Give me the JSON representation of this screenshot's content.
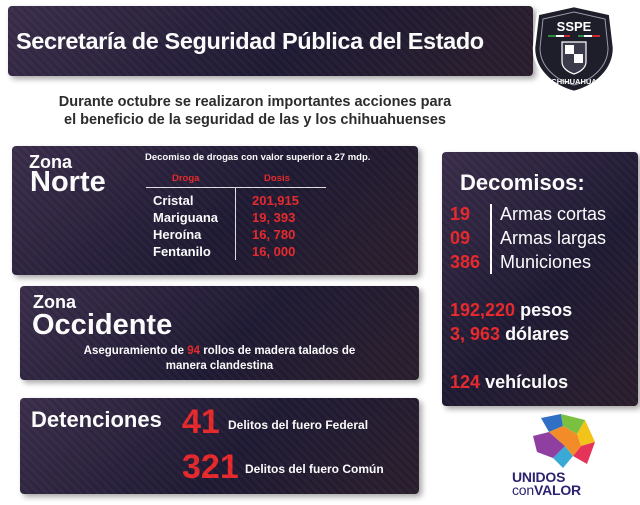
{
  "header": {
    "title": "Secretaría de Seguridad Pública del Estado",
    "logo_top": "SSPE",
    "logo_bottom": "CHIHUAHUA"
  },
  "intro": {
    "line1": "Durante octubre se realizaron importantes acciones para",
    "line2": "el beneficio de la seguridad de las y los chihuahuenses"
  },
  "norte": {
    "zona_label": "Zona",
    "name": "Norte",
    "caption": "Decomiso de drogas con valor superior a 27 mdp.",
    "col_drug": "Droga",
    "col_dose": "Dosis",
    "rows": [
      {
        "drug": "Cristal",
        "dose": "201,915"
      },
      {
        "drug": "Mariguana",
        "dose": "19, 393"
      },
      {
        "drug": "Heroína",
        "dose": "16, 780"
      },
      {
        "drug": "Fentanilo",
        "dose": "16, 000"
      }
    ]
  },
  "occidente": {
    "zona_label": "Zona",
    "name": "Occidente",
    "caption_pre": "Aseguramiento de ",
    "caption_num": "94",
    "caption_post": " rollos de madera talados de",
    "caption_line2": "manera clandestina"
  },
  "detenciones": {
    "title": "Detenciones",
    "items": [
      {
        "number": "41",
        "label": "Delitos del fuero Federal"
      },
      {
        "number": "321",
        "label": "Delitos del fuero Común"
      }
    ]
  },
  "decomisos": {
    "title": "Decomisos:",
    "items": [
      {
        "number": "19",
        "label": "Armas cortas"
      },
      {
        "number": "09",
        "label": "Armas largas"
      },
      {
        "number": "386",
        "label": "Municiones"
      }
    ],
    "money": [
      {
        "number": "192,220",
        "label": "pesos"
      },
      {
        "number": "3, 963",
        "label": "dólares"
      }
    ],
    "vehicles": {
      "number": "124",
      "label": "vehículos"
    }
  },
  "footer_logo": {
    "line1": "UNIDOS",
    "line2_a": "con",
    "line2_b": "VALOR"
  },
  "colors": {
    "panel": "#241d36",
    "accent_red": "#e8282b",
    "intro_text": "#2c2c2c",
    "logo_blue": "#2b2370"
  }
}
